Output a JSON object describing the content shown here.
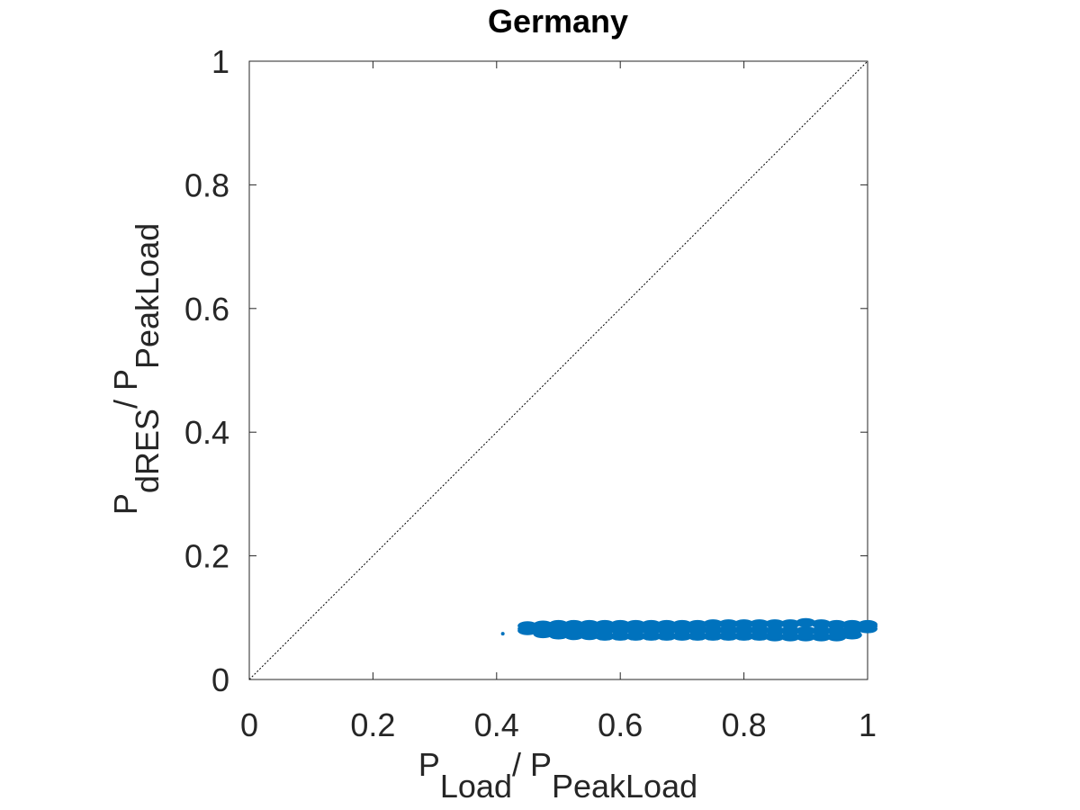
{
  "chart_data": {
    "type": "scatter",
    "title": "Germany",
    "xlabel": [
      {
        "text": "P"
      },
      {
        "text": "Load",
        "subscript": true
      },
      {
        "text": "/ P"
      },
      {
        "text": "PeakLoad",
        "subscript": true
      }
    ],
    "ylabel": [
      {
        "text": "P"
      },
      {
        "text": "dRES",
        "subscript": true
      },
      {
        "text": "/ P"
      },
      {
        "text": "PeakLoad",
        "subscript": true
      }
    ],
    "xlim": [
      0,
      1
    ],
    "ylim": [
      0,
      1
    ],
    "xticks": [
      0,
      0.2,
      0.4,
      0.6,
      0.8,
      1
    ],
    "yticks": [
      0,
      0.2,
      0.4,
      0.6,
      0.8,
      1
    ],
    "grid": false,
    "reference_line": {
      "x": [
        0,
        1
      ],
      "y": [
        0,
        1
      ],
      "color": "#000000"
    },
    "series": [
      {
        "color": "#0072bd",
        "x": [
          0.45,
          0.475,
          0.5,
          0.525,
          0.55,
          0.575,
          0.6,
          0.625,
          0.65,
          0.675,
          0.7,
          0.725,
          0.75,
          0.775,
          0.8,
          0.825,
          0.85,
          0.875,
          0.9,
          0.925,
          0.95,
          0.975,
          1.0,
          0.45,
          0.475,
          0.5,
          0.525,
          0.55,
          0.575,
          0.6,
          0.625,
          0.65,
          0.675,
          0.7,
          0.725,
          0.75,
          0.775,
          0.8,
          0.825,
          0.85,
          0.875,
          0.9,
          0.925,
          0.95,
          0.975,
          1.0,
          0.45,
          0.475,
          0.5,
          0.525,
          0.55,
          0.575,
          0.6,
          0.625,
          0.65,
          0.675,
          0.7,
          0.725,
          0.75,
          0.775,
          0.8,
          0.825,
          0.85,
          0.875,
          0.9,
          0.925,
          0.95,
          0.975,
          1.0,
          0.41
        ],
        "values": [
          0.079,
          0.074,
          0.072,
          0.071,
          0.071,
          0.07,
          0.07,
          0.07,
          0.07,
          0.07,
          0.07,
          0.07,
          0.07,
          0.07,
          0.07,
          0.07,
          0.069,
          0.069,
          0.069,
          0.069,
          0.069,
          0.072,
          0.082,
          0.082,
          0.08,
          0.08,
          0.08,
          0.08,
          0.08,
          0.08,
          0.08,
          0.08,
          0.08,
          0.08,
          0.08,
          0.08,
          0.08,
          0.08,
          0.08,
          0.079,
          0.079,
          0.079,
          0.079,
          0.079,
          0.08,
          0.086,
          0.087,
          0.088,
          0.089,
          0.089,
          0.089,
          0.089,
          0.089,
          0.089,
          0.089,
          0.089,
          0.089,
          0.089,
          0.09,
          0.09,
          0.09,
          0.09,
          0.09,
          0.09,
          0.092,
          0.09,
          0.089,
          0.089,
          0.089,
          0.074
        ]
      }
    ]
  }
}
